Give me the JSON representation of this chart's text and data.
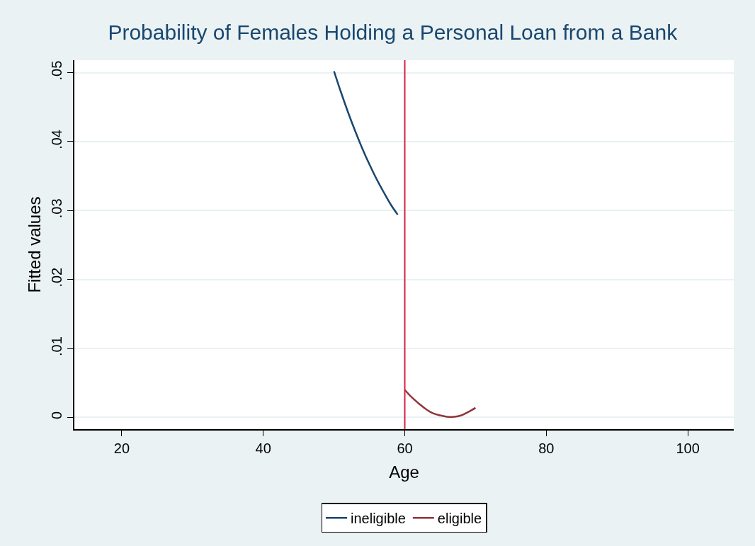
{
  "chart_data": {
    "type": "line",
    "title": "Probability of Females Holding a Personal Loan from a Bank",
    "xlabel": "Age",
    "ylabel": "Fitted values",
    "series": [
      {
        "name": "ineligible",
        "color": "#1a476f",
        "x": [
          50,
          51,
          52,
          53,
          54,
          55,
          56,
          57,
          58,
          59
        ],
        "values": [
          0.0502,
          0.0471,
          0.0442,
          0.0415,
          0.039,
          0.0367,
          0.0346,
          0.0327,
          0.0309,
          0.0294
        ]
      },
      {
        "name": "eligible",
        "color": "#90353b",
        "x": [
          60,
          61,
          62,
          63,
          64,
          65,
          66,
          67,
          68,
          69,
          70
        ],
        "values": [
          0.004,
          0.0029,
          0.002,
          0.0012,
          0.0006,
          0.0003,
          0.0001,
          0.0001,
          0.0003,
          0.0008,
          0.0014
        ]
      }
    ],
    "xlim": [
      13.3,
      106.5
    ],
    "xticks": [
      20,
      40,
      60,
      80,
      100
    ],
    "ylim": [
      -0.0017,
      0.0518
    ],
    "yticks": [
      {
        "value": 0,
        "label": "0"
      },
      {
        "value": 0.01,
        "label": ".01"
      },
      {
        "value": 0.02,
        "label": ".02"
      },
      {
        "value": 0.03,
        "label": ".03"
      },
      {
        "value": 0.04,
        "label": ".04"
      },
      {
        "value": 0.05,
        "label": ".05"
      }
    ],
    "ref_lines": [
      {
        "axis": "x",
        "value": 60,
        "color": "#d62045"
      }
    ],
    "grid": "y",
    "legend": "bottom",
    "line_style": "solid"
  }
}
